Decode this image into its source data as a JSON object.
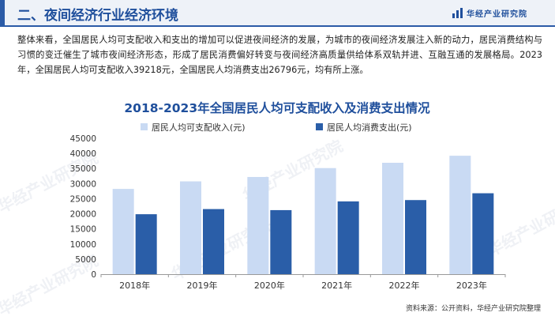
{
  "header": {
    "section_title": "二、夜间经济行业经济环境",
    "logo_text": "华经产业研究院",
    "logo_icon": "bar-logo-icon"
  },
  "intro_text": "整体来看，全国居民人均可支配收入和支出的增加可以促进夜间经济的发展，为城市的夜间经济发展注入新的动力，居民消费结构与习惯的变迁催生了城市夜间经济形态，形成了居民消费偏好转变与夜间经济高质量供给体系双轨并进、互融互通的发展格局。2023年，全国居民人均可支配收入39218元，全国居民人均消费支出26796元，均有所上涨。",
  "chart_data": {
    "type": "bar",
    "title": "2018-2023年全国居民人均可支配收入及消费支出情况",
    "categories": [
      "2018年",
      "2019年",
      "2020年",
      "2021年",
      "2022年",
      "2023年"
    ],
    "series": [
      {
        "name": "居民人均可支配收入(元)",
        "color": "#c9daf3",
        "values": [
          28228,
          30733,
          32189,
          35128,
          36883,
          39218
        ]
      },
      {
        "name": "居民人均消费支出(元)",
        "color": "#2a5ea8",
        "values": [
          19853,
          21559,
          21210,
          24100,
          24538,
          26796
        ]
      }
    ],
    "ylim": [
      0,
      45000
    ],
    "yticks": [
      0,
      5000,
      10000,
      15000,
      20000,
      25000,
      30000,
      35000,
      40000,
      45000
    ],
    "legend": "top-left",
    "grid": false
  },
  "source": "资料来源：公开资料，华经产业研究院整理",
  "watermark": "华经产业研究院"
}
